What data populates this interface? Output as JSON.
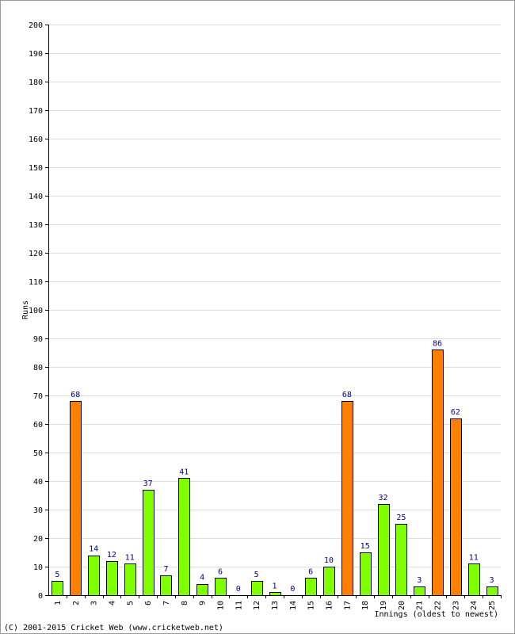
{
  "chart_data": {
    "type": "bar",
    "title": "",
    "xlabel": "Innings (oldest to newest)",
    "ylabel": "Runs",
    "ylim": [
      0,
      200
    ],
    "ytick_step": 10,
    "grid": true,
    "categories": [
      "1",
      "2",
      "3",
      "4",
      "5",
      "6",
      "7",
      "8",
      "9",
      "10",
      "11",
      "12",
      "13",
      "14",
      "15",
      "16",
      "17",
      "18",
      "19",
      "20",
      "21",
      "22",
      "23",
      "24",
      "25"
    ],
    "values": [
      5,
      68,
      14,
      12,
      11,
      37,
      7,
      41,
      4,
      6,
      0,
      5,
      1,
      0,
      6,
      10,
      68,
      15,
      32,
      25,
      3,
      86,
      62,
      11,
      3
    ],
    "fifty_plus": [
      false,
      true,
      false,
      false,
      false,
      false,
      false,
      false,
      false,
      false,
      false,
      false,
      false,
      false,
      false,
      false,
      true,
      false,
      false,
      false,
      false,
      true,
      true,
      false,
      false
    ],
    "colors": {
      "normal": "#80ff00",
      "fifty_plus": "#ff8000",
      "bar_stroke": "#000000",
      "data_label": "#000080",
      "grid": "#dddddd"
    }
  },
  "footer": {
    "copyright": "(C) 2001-2015 Cricket Web (www.cricketweb.net)"
  }
}
